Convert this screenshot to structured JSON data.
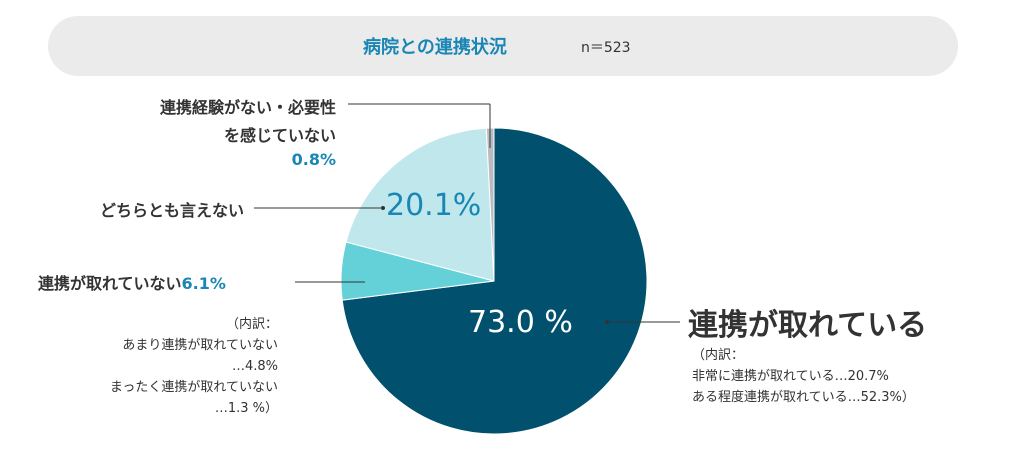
{
  "title": {
    "text": "病院との連携状況",
    "n": "n＝523"
  },
  "colors": {
    "main": "#00506e",
    "light_teal": "#c0e8ec",
    "teal": "#64d0d8",
    "gray": "#b8bcc0",
    "accent_text": "#1a86b5"
  },
  "labels": {
    "main_label": "連携が取れている",
    "main_pct": "73.0 %",
    "main_note_1": "（内訳：",
    "main_note_2": "非常に連携が取れている…20.7%",
    "main_note_3": "ある程度連携が取れている…52.3%）",
    "undecided_label": "どちらとも言えない",
    "undecided_pct": "20.1%",
    "none_label_1": "連携経験がない・必要性",
    "none_label_2": "を感じていない",
    "none_pct": "0.8%",
    "notconn_label": "連携が取れていない",
    "notconn_pct": "6.1%",
    "notconn_note_1": "（内訳：",
    "notconn_note_2": "あまり連携が取れていない",
    "notconn_note_3": "…4.8%",
    "notconn_note_4": "まったく連携が取れていない",
    "notconn_note_5": "…1.3 %）"
  },
  "chart_data": {
    "type": "pie",
    "title": "病院との連携状況",
    "n": 523,
    "slices": [
      {
        "name": "連携が取れている",
        "value": 73.0,
        "color": "#00506e"
      },
      {
        "name": "連携が取れていない",
        "value": 6.1,
        "color": "#64d0d8"
      },
      {
        "name": "どちらとも言えない",
        "value": 20.1,
        "color": "#c0e8ec"
      },
      {
        "name": "連携経験がない・必要性を感じていない",
        "value": 0.8,
        "color": "#b8bcc0"
      }
    ],
    "breakdown": {
      "連携が取れている": [
        {
          "name": "非常に連携が取れている",
          "value": 20.7
        },
        {
          "name": "ある程度連携が取れている",
          "value": 52.3
        }
      ],
      "連携が取れていない": [
        {
          "name": "あまり連携が取れていない",
          "value": 4.8
        },
        {
          "name": "まったく連携が取れていない",
          "value": 1.3
        }
      ]
    }
  }
}
